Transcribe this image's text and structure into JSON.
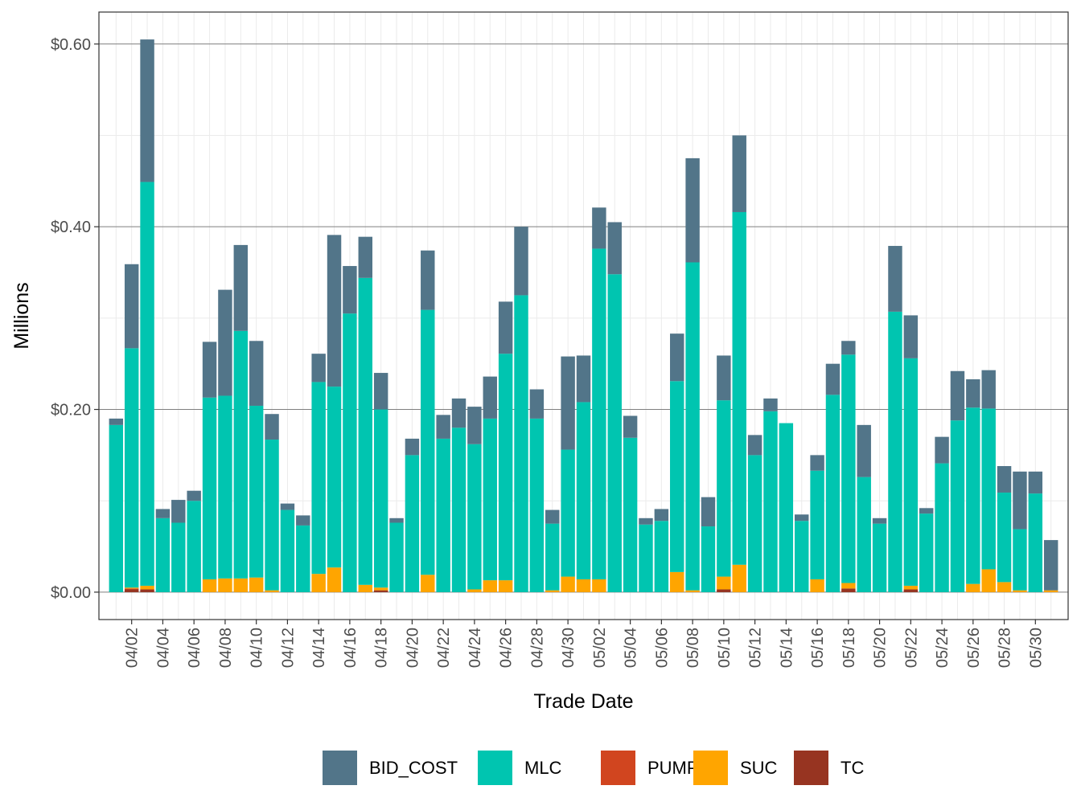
{
  "chart_data": {
    "type": "bar",
    "stacked": true,
    "title": "",
    "xlabel": "Trade Date",
    "ylabel": "Millions",
    "ylim": [
      -0.03,
      0.635
    ],
    "y_ticks": [
      0.0,
      0.2,
      0.4,
      0.6
    ],
    "y_tick_labels": [
      "$0.00",
      "$0.20",
      "$0.40",
      "$0.60"
    ],
    "legend_position": "bottom",
    "categories": [
      "04/01",
      "04/02",
      "04/03",
      "04/04",
      "04/05",
      "04/06",
      "04/07",
      "04/08",
      "04/09",
      "04/10",
      "04/11",
      "04/12",
      "04/13",
      "04/14",
      "04/15",
      "04/16",
      "04/17",
      "04/18",
      "04/19",
      "04/20",
      "04/21",
      "04/22",
      "04/23",
      "04/24",
      "04/25",
      "04/26",
      "04/27",
      "04/28",
      "04/29",
      "04/30",
      "05/01",
      "05/02",
      "05/03",
      "05/04",
      "05/05",
      "05/06",
      "05/07",
      "05/08",
      "05/09",
      "05/10",
      "05/11",
      "05/12",
      "05/13",
      "05/14",
      "05/15",
      "05/16",
      "05/17",
      "05/18",
      "05/19",
      "05/20",
      "05/21",
      "05/22",
      "05/23",
      "05/24",
      "05/25",
      "05/26",
      "05/27",
      "05/28",
      "05/29",
      "05/30",
      "05/31"
    ],
    "x_tick_labels": [
      "04/02",
      "04/04",
      "04/06",
      "04/08",
      "04/10",
      "04/12",
      "04/14",
      "04/16",
      "04/18",
      "04/20",
      "04/22",
      "04/24",
      "04/26",
      "04/28",
      "04/30",
      "05/02",
      "05/04",
      "05/06",
      "05/08",
      "05/10",
      "05/12",
      "05/14",
      "05/16",
      "05/18",
      "05/20",
      "05/22",
      "05/24",
      "05/26",
      "05/28",
      "05/30"
    ],
    "series": [
      {
        "name": "TC",
        "color": "#973421",
        "values": [
          0,
          0.003,
          0.003,
          0,
          0,
          0,
          0,
          0,
          0,
          0,
          0,
          0,
          0,
          0,
          0,
          0,
          0,
          0.002,
          0,
          0,
          0,
          0,
          0,
          0,
          0,
          0,
          0,
          0,
          0,
          0,
          0,
          0,
          0,
          0,
          0,
          0,
          0,
          0,
          0,
          0.003,
          0,
          0,
          0,
          0,
          0,
          0,
          0,
          0.004,
          0,
          0,
          0,
          0.003,
          0,
          0,
          0,
          0,
          0,
          0,
          0,
          0,
          0
        ]
      },
      {
        "name": "PUMP",
        "color": "#D1451F",
        "values": [
          0,
          0.001,
          0,
          0,
          0,
          0,
          0,
          0,
          0,
          0,
          0,
          0,
          0,
          0,
          0,
          0,
          0,
          0,
          0,
          0,
          0,
          0,
          0,
          0,
          0,
          0,
          0,
          0,
          0,
          0,
          0,
          0,
          0,
          0,
          0,
          0,
          0,
          0,
          0,
          0,
          0,
          0,
          0,
          0,
          0,
          0,
          0,
          0,
          0,
          0,
          0,
          0,
          0,
          0,
          0,
          0,
          0,
          0,
          0,
          0,
          0
        ]
      },
      {
        "name": "SUC",
        "color": "#FFA500",
        "values": [
          0,
          0.001,
          0.004,
          0,
          0,
          0,
          0.014,
          0.015,
          0.015,
          0.016,
          0.002,
          0,
          0,
          0.02,
          0.027,
          0,
          0.008,
          0.003,
          0,
          0,
          0.019,
          0,
          0,
          0.003,
          0.013,
          0.013,
          0,
          0,
          0.002,
          0.017,
          0.014,
          0.014,
          0,
          0,
          0,
          0,
          0.022,
          0.002,
          0,
          0.014,
          0.03,
          0,
          0,
          0,
          0,
          0.014,
          0,
          0.006,
          0,
          0,
          0,
          0.004,
          0,
          0,
          0,
          0.009,
          0.025,
          0.011,
          0.002,
          0,
          0.002
        ]
      },
      {
        "name": "MLC",
        "color": "#00C5B0",
        "values": [
          0.183,
          0.262,
          0.442,
          0.081,
          0.076,
          0.1,
          0.199,
          0.2,
          0.271,
          0.188,
          0.165,
          0.09,
          0.073,
          0.21,
          0.198,
          0.305,
          0.336,
          0.195,
          0.076,
          0.15,
          0.29,
          0.168,
          0.18,
          0.159,
          0.177,
          0.248,
          0.325,
          0.19,
          0.073,
          0.139,
          0.194,
          0.362,
          0.348,
          0.169,
          0.074,
          0.078,
          0.209,
          0.359,
          0.072,
          0.193,
          0.386,
          0.15,
          0.198,
          0.185,
          0.078,
          0.119,
          0.216,
          0.25,
          0.126,
          0.075,
          0.307,
          0.249,
          0.086,
          0.141,
          0.188,
          0.193,
          0.176,
          0.098,
          0.067,
          0.108,
          0
        ]
      },
      {
        "name": "BID_COST",
        "color": "#527589",
        "values": [
          0.007,
          0.092,
          0.156,
          0.01,
          0.025,
          0.011,
          0.061,
          0.116,
          0.094,
          0.071,
          0.028,
          0.007,
          0.011,
          0.031,
          0.166,
          0.052,
          0.045,
          0.04,
          0.005,
          0.018,
          0.065,
          0.026,
          0.032,
          0.041,
          0.046,
          0.057,
          0.075,
          0.032,
          0.015,
          0.102,
          0.051,
          0.045,
          0.057,
          0.024,
          0.007,
          0.013,
          0.052,
          0.114,
          0.032,
          0.049,
          0.084,
          0.022,
          0.014,
          0,
          0.007,
          0.017,
          0.034,
          0.015,
          0.057,
          0.006,
          0.072,
          0.047,
          0.006,
          0.029,
          0.054,
          0.031,
          0.042,
          0.029,
          0.063,
          0.024,
          0.055
        ]
      }
    ],
    "legend_order": [
      "BID_COST",
      "MLC",
      "PUMP",
      "SUC",
      "TC"
    ]
  }
}
